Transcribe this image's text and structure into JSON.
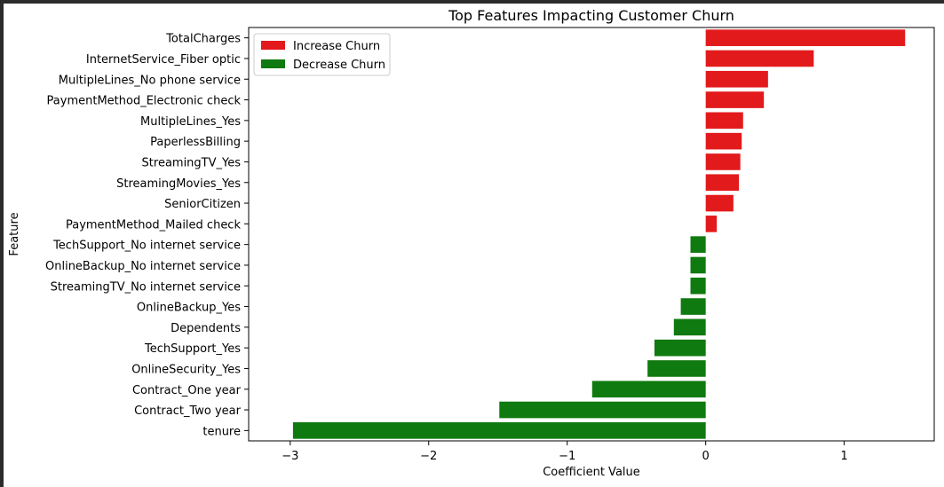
{
  "chart_data": {
    "type": "bar",
    "orientation": "horizontal",
    "title": "Top Features Impacting Customer Churn",
    "xlabel": "Coefficient Value",
    "ylabel": "Feature",
    "xlim": [
      -3.3,
      1.65
    ],
    "xticks": [
      -3,
      -2,
      -1,
      0,
      1
    ],
    "xtick_labels": [
      "−3",
      "−2",
      "−1",
      "0",
      "1"
    ],
    "categories": [
      "TotalCharges",
      "InternetService_Fiber optic",
      "MultipleLines_No phone service",
      "PaymentMethod_Electronic check",
      "MultipleLines_Yes",
      "PaperlessBilling",
      "StreamingTV_Yes",
      "StreamingMovies_Yes",
      "SeniorCitizen",
      "PaymentMethod_Mailed check",
      "TechSupport_No internet service",
      "OnlineBackup_No internet service",
      "StreamingTV_No internet service",
      "OnlineBackup_Yes",
      "Dependents",
      "TechSupport_Yes",
      "OnlineSecurity_Yes",
      "Contract_One year",
      "Contract_Two year",
      "tenure"
    ],
    "values": [
      1.44,
      0.78,
      0.45,
      0.42,
      0.27,
      0.26,
      0.25,
      0.24,
      0.2,
      0.08,
      -0.11,
      -0.11,
      -0.11,
      -0.18,
      -0.23,
      -0.37,
      -0.42,
      -0.82,
      -1.49,
      -2.98
    ],
    "grid": false,
    "legend": {
      "position": "top-left",
      "entries": [
        {
          "label": "Increase Churn",
          "color": "#e31a1c"
        },
        {
          "label": "Decrease Churn",
          "color": "#0f7a0f"
        }
      ]
    },
    "colors": {
      "positive": "#e31a1c",
      "negative": "#0f7a0f"
    }
  }
}
